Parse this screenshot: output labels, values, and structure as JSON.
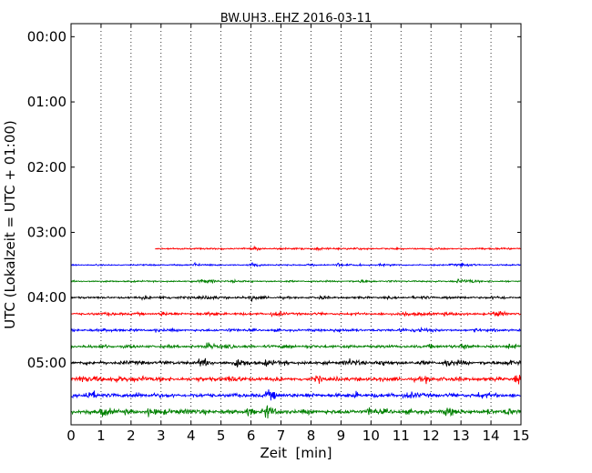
{
  "chart_data": {
    "type": "line",
    "title": "BW.UH3..EHZ 2016-03-11",
    "xlabel": "Zeit  [min]",
    "ylabel": "UTC (Lokalzeit = UTC + 01:00)",
    "xlim": [
      0,
      15
    ],
    "x_ticks": [
      "0",
      "1",
      "2",
      "3",
      "4",
      "5",
      "6",
      "7",
      "8",
      "9",
      "10",
      "11",
      "12",
      "13",
      "14",
      "15"
    ],
    "y_ticks": [
      "00:00",
      "01:00",
      "02:00",
      "03:00",
      "04:00",
      "05:00"
    ],
    "y_tick_hours": [
      0,
      1,
      2,
      3,
      4,
      5
    ],
    "ylim_hours": [
      5.95,
      -0.2
    ],
    "x_grid": "dotted vertical at each minute",
    "y_grid": false,
    "line_interval_minutes": 15,
    "series": [
      {
        "start_utc": "03:15",
        "start_min": 2.8,
        "color": "#ff0000",
        "noise": 0.35,
        "events": [
          [
            6.0,
            0.6
          ],
          [
            8.1,
            0.4
          ],
          [
            9.2,
            0.3
          ],
          [
            12.0,
            0.35
          ],
          [
            13.9,
            0.3
          ]
        ]
      },
      {
        "start_utc": "03:30",
        "start_min": 0,
        "color": "#0000ff",
        "noise": 0.3,
        "events": [
          [
            4.1,
            0.9
          ],
          [
            6.0,
            1.0
          ],
          [
            7.9,
            0.5
          ],
          [
            8.9,
            0.7
          ],
          [
            10.3,
            0.4
          ],
          [
            12.6,
            0.4
          ],
          [
            13.0,
            0.5
          ]
        ]
      },
      {
        "start_utc": "03:45",
        "start_min": 0,
        "color": "#008000",
        "noise": 0.35,
        "events": [
          [
            4.3,
            1.3
          ],
          [
            5.4,
            0.5
          ],
          [
            9.6,
            0.7
          ],
          [
            12.9,
            1.1
          ],
          [
            13.4,
            0.5
          ]
        ]
      },
      {
        "start_utc": "04:00",
        "start_min": 0,
        "color": "#000000",
        "noise": 0.45,
        "events": [
          [
            2.4,
            0.6
          ],
          [
            3.0,
            0.7
          ],
          [
            4.0,
            0.8
          ],
          [
            4.6,
            1.0
          ],
          [
            6.0,
            1.2
          ],
          [
            8.3,
            0.6
          ],
          [
            11.4,
            0.6
          ],
          [
            12.5,
            0.8
          ],
          [
            14.0,
            0.7
          ]
        ]
      },
      {
        "start_utc": "04:15",
        "start_min": 0,
        "color": "#ff0000",
        "noise": 0.5,
        "events": [
          [
            1.2,
            0.8
          ],
          [
            3.0,
            0.7
          ],
          [
            4.6,
            0.7
          ],
          [
            6.7,
            0.8
          ],
          [
            11.1,
            1.5
          ],
          [
            12.4,
            0.8
          ],
          [
            14.1,
            1.3
          ]
        ]
      },
      {
        "start_utc": "04:30",
        "start_min": 0,
        "color": "#0000ff",
        "noise": 0.5,
        "events": [
          [
            1.1,
            0.6
          ],
          [
            2.8,
            0.7
          ],
          [
            5.2,
            0.6
          ],
          [
            8.8,
            0.9
          ],
          [
            11.0,
            1.2
          ],
          [
            11.6,
            1.0
          ],
          [
            13.5,
            0.6
          ]
        ]
      },
      {
        "start_utc": "04:45",
        "start_min": 0,
        "color": "#008000",
        "noise": 0.6,
        "events": [
          [
            1.0,
            0.6
          ],
          [
            4.5,
            1.3
          ],
          [
            5.0,
            0.8
          ],
          [
            7.1,
            0.9
          ],
          [
            12.0,
            0.8
          ],
          [
            13.0,
            1.1
          ],
          [
            14.6,
            1.3
          ]
        ]
      },
      {
        "start_utc": "05:00",
        "start_min": 0,
        "color": "#000000",
        "noise": 0.8,
        "events": [
          [
            4.3,
            1.3
          ],
          [
            5.5,
            1.7
          ],
          [
            6.5,
            1.0
          ],
          [
            9.3,
            1.3
          ],
          [
            10.2,
            0.9
          ],
          [
            12.5,
            1.6
          ],
          [
            14.6,
            1.9
          ]
        ]
      },
      {
        "start_utc": "05:15",
        "start_min": 0,
        "color": "#ff0000",
        "noise": 0.85,
        "events": [
          [
            0.3,
            1.6
          ],
          [
            1.3,
            1.5
          ],
          [
            2.4,
            1.1
          ],
          [
            5.2,
            1.2
          ],
          [
            8.2,
            1.0
          ],
          [
            11.8,
            1.1
          ],
          [
            14.8,
            1.4
          ]
        ]
      },
      {
        "start_utc": "05:30",
        "start_min": 0,
        "color": "#0000ff",
        "noise": 0.85,
        "events": [
          [
            0.5,
            1.7
          ],
          [
            2.2,
            1.1
          ],
          [
            6.5,
            1.7
          ],
          [
            9.4,
            1.1
          ],
          [
            11.1,
            1.4
          ],
          [
            13.6,
            1.1
          ]
        ]
      },
      {
        "start_utc": "05:45",
        "start_min": 0,
        "color": "#008000",
        "noise": 0.95,
        "events": [
          [
            1.0,
            2.2
          ],
          [
            2.6,
            1.6
          ],
          [
            3.5,
            1.1
          ],
          [
            5.9,
            1.6
          ],
          [
            6.5,
            2.0
          ],
          [
            9.9,
            1.3
          ],
          [
            12.5,
            1.3
          ],
          [
            14.5,
            1.4
          ]
        ]
      }
    ]
  }
}
